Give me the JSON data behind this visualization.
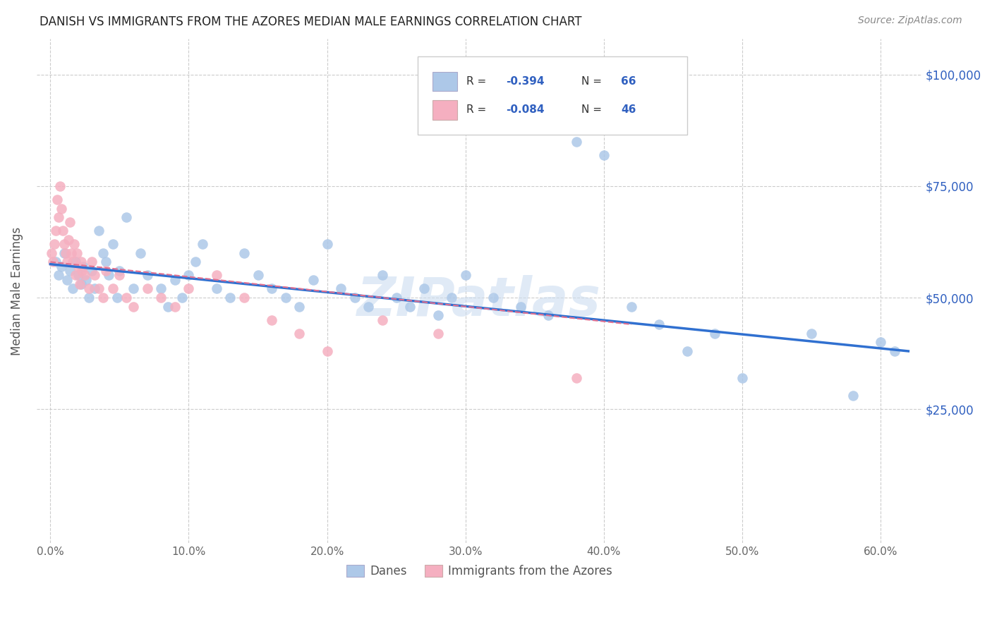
{
  "title": "DANISH VS IMMIGRANTS FROM THE AZORES MEDIAN MALE EARNINGS CORRELATION CHART",
  "source": "Source: ZipAtlas.com",
  "xlabel_ticks": [
    "0.0%",
    "10.0%",
    "20.0%",
    "30.0%",
    "40.0%",
    "50.0%",
    "60.0%"
  ],
  "xlabel_vals": [
    0.0,
    0.1,
    0.2,
    0.3,
    0.4,
    0.5,
    0.6
  ],
  "ylabel": "Median Male Earnings",
  "ylabel_ticks": [
    "$25,000",
    "$50,000",
    "$75,000",
    "$100,000"
  ],
  "ylabel_vals": [
    25000,
    50000,
    75000,
    100000
  ],
  "xlim": [
    -0.01,
    0.63
  ],
  "ylim": [
    -5000,
    108000
  ],
  "watermark": "ZIPatlas",
  "legend_r_blue": "-0.394",
  "legend_n_blue": "66",
  "legend_r_pink": "-0.084",
  "legend_n_pink": "46",
  "blue_color": "#adc8e8",
  "pink_color": "#f5afc0",
  "blue_line_color": "#3070d0",
  "pink_line_color": "#e07090",
  "danes_scatter_x": [
    0.004,
    0.006,
    0.008,
    0.01,
    0.012,
    0.014,
    0.016,
    0.018,
    0.02,
    0.022,
    0.024,
    0.026,
    0.028,
    0.03,
    0.032,
    0.035,
    0.038,
    0.04,
    0.042,
    0.045,
    0.048,
    0.05,
    0.055,
    0.06,
    0.065,
    0.07,
    0.08,
    0.085,
    0.09,
    0.095,
    0.1,
    0.105,
    0.11,
    0.12,
    0.13,
    0.14,
    0.15,
    0.16,
    0.17,
    0.18,
    0.19,
    0.2,
    0.21,
    0.22,
    0.23,
    0.24,
    0.25,
    0.26,
    0.27,
    0.28,
    0.29,
    0.3,
    0.32,
    0.34,
    0.36,
    0.38,
    0.4,
    0.42,
    0.44,
    0.46,
    0.48,
    0.5,
    0.55,
    0.58,
    0.6,
    0.61
  ],
  "danes_scatter_y": [
    58000,
    55000,
    57000,
    60000,
    54000,
    56000,
    52000,
    58000,
    55000,
    53000,
    57000,
    54000,
    50000,
    56000,
    52000,
    65000,
    60000,
    58000,
    55000,
    62000,
    50000,
    56000,
    68000,
    52000,
    60000,
    55000,
    52000,
    48000,
    54000,
    50000,
    55000,
    58000,
    62000,
    52000,
    50000,
    60000,
    55000,
    52000,
    50000,
    48000,
    54000,
    62000,
    52000,
    50000,
    48000,
    55000,
    50000,
    48000,
    52000,
    46000,
    50000,
    55000,
    50000,
    48000,
    46000,
    85000,
    82000,
    48000,
    44000,
    38000,
    42000,
    32000,
    42000,
    28000,
    40000,
    38000
  ],
  "azores_scatter_x": [
    0.001,
    0.002,
    0.003,
    0.004,
    0.005,
    0.006,
    0.007,
    0.008,
    0.009,
    0.01,
    0.011,
    0.012,
    0.013,
    0.014,
    0.015,
    0.016,
    0.017,
    0.018,
    0.019,
    0.02,
    0.021,
    0.022,
    0.023,
    0.025,
    0.028,
    0.03,
    0.032,
    0.035,
    0.038,
    0.04,
    0.045,
    0.05,
    0.055,
    0.06,
    0.07,
    0.08,
    0.09,
    0.1,
    0.12,
    0.14,
    0.16,
    0.18,
    0.2,
    0.24,
    0.28,
    0.38
  ],
  "azores_scatter_y": [
    60000,
    58000,
    62000,
    65000,
    72000,
    68000,
    75000,
    70000,
    65000,
    62000,
    60000,
    58000,
    63000,
    67000,
    60000,
    58000,
    62000,
    55000,
    60000,
    57000,
    53000,
    58000,
    56000,
    55000,
    52000,
    58000,
    55000,
    52000,
    50000,
    56000,
    52000,
    55000,
    50000,
    48000,
    52000,
    50000,
    48000,
    52000,
    55000,
    50000,
    45000,
    42000,
    38000,
    45000,
    42000,
    32000
  ],
  "blue_trend_x0": 0.0,
  "blue_trend_x1": 0.62,
  "blue_trend_y0": 57500,
  "blue_trend_y1": 38000,
  "pink_trend_x0": 0.0,
  "pink_trend_x1": 0.42,
  "pink_trend_y0": 58000,
  "pink_trend_y1": 44000
}
